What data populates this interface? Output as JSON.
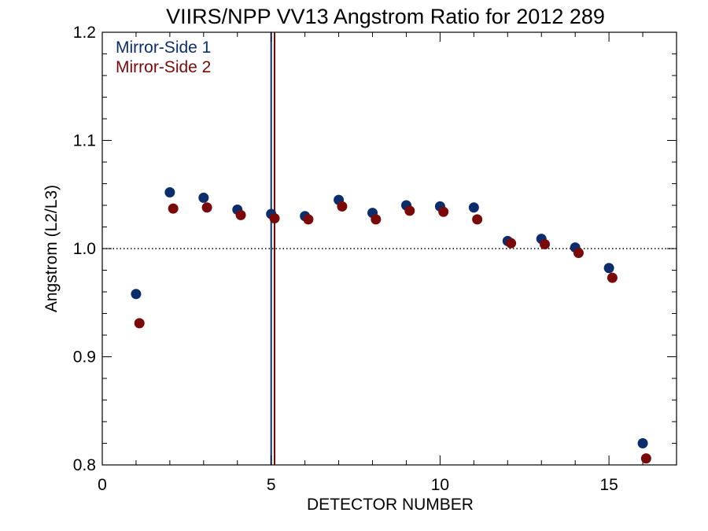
{
  "chart_data": {
    "type": "scatter",
    "title": "VIIRS/NPP VV13 Angstrom Ratio for 2012 289",
    "xlabel": "DETECTOR NUMBER",
    "ylabel": "Angstrom (L2/L3)",
    "xlim": [
      0,
      17
    ],
    "ylim": [
      0.8,
      1.2
    ],
    "x_ticks": [
      0,
      5,
      10,
      15
    ],
    "x_tick_labels": [
      "0",
      "5",
      "10",
      "15"
    ],
    "y_ticks": [
      0.8,
      0.9,
      1.0,
      1.1,
      1.2
    ],
    "y_tick_labels": [
      "0.8",
      "0.9",
      "1.0",
      "1.1",
      "1.2"
    ],
    "grid": false,
    "legend_position": "top-left",
    "reference_line": {
      "y": 1.0,
      "style": "dotted"
    },
    "vertical_lines": [
      {
        "x": 5.0,
        "color": "#0b2d6b"
      },
      {
        "x": 5.1,
        "color": "#7a0a0a"
      }
    ],
    "series": [
      {
        "name": "Mirror-Side 1",
        "color": "#0b2d6b",
        "x": [
          1,
          2,
          3,
          4,
          5,
          6,
          7,
          8,
          9,
          10,
          11,
          12,
          13,
          14,
          15,
          16
        ],
        "y": [
          0.958,
          1.052,
          1.047,
          1.036,
          1.032,
          1.03,
          1.045,
          1.033,
          1.04,
          1.039,
          1.038,
          1.007,
          1.009,
          1.001,
          0.982,
          0.82
        ]
      },
      {
        "name": "Mirror-Side 2",
        "color": "#7a0a0a",
        "x": [
          1.1,
          2.1,
          3.1,
          4.1,
          5.1,
          6.1,
          7.1,
          8.1,
          9.1,
          10.1,
          11.1,
          12.1,
          13.1,
          14.1,
          15.1,
          16.1
        ],
        "y": [
          0.931,
          1.037,
          1.038,
          1.031,
          1.028,
          1.027,
          1.039,
          1.027,
          1.035,
          1.034,
          1.027,
          1.005,
          1.004,
          0.996,
          0.973,
          0.806
        ]
      }
    ]
  }
}
